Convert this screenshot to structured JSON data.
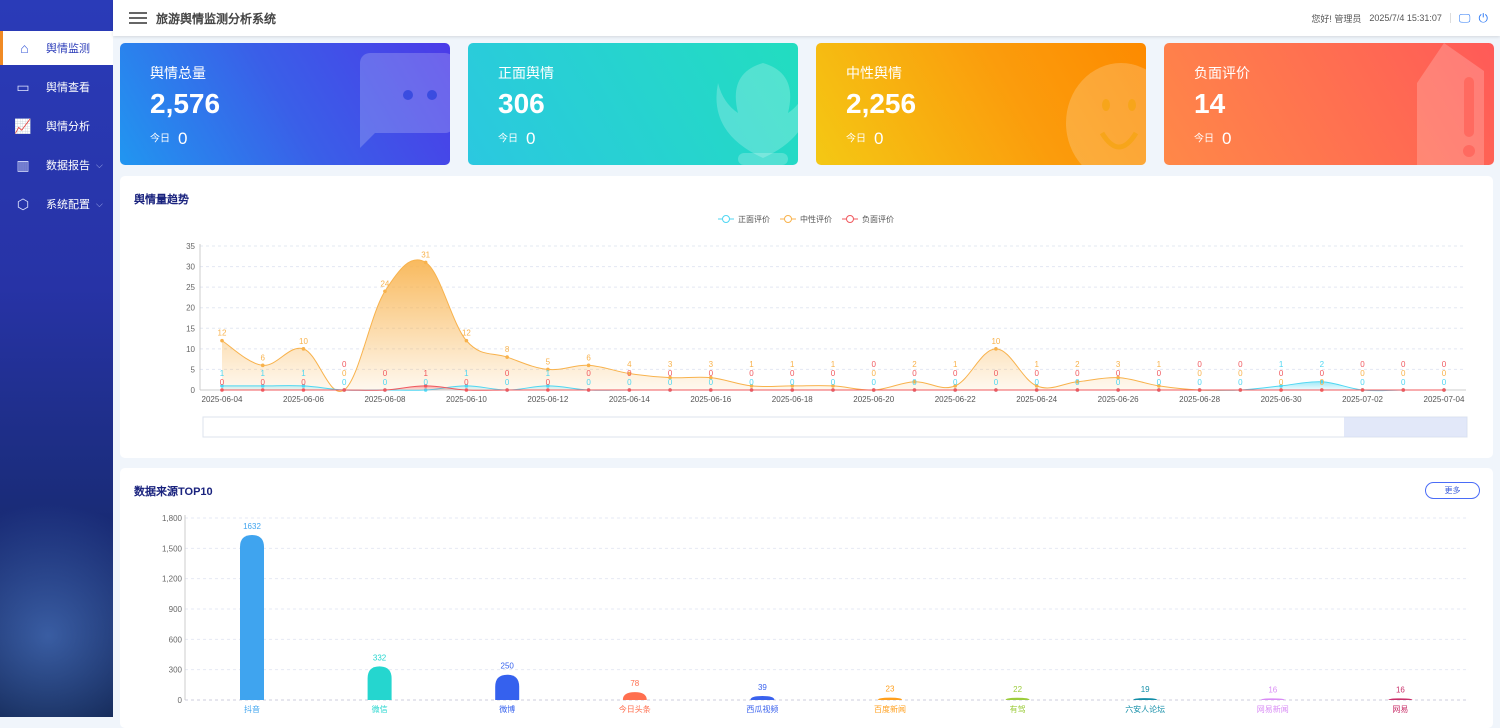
{
  "header": {
    "title": "旅游舆情监测分析系统",
    "greeting": "您好! 管理员",
    "datetime": "2025/7/4 15:31:07"
  },
  "sidebar": {
    "items": [
      {
        "label": "舆情监测",
        "icon": "home-icon",
        "active": true
      },
      {
        "label": "舆情查看",
        "icon": "monitor-list-icon"
      },
      {
        "label": "舆情分析",
        "icon": "line-chart-icon"
      },
      {
        "label": "数据报告",
        "icon": "bar-chart-icon",
        "expandable": true
      },
      {
        "label": "系统配置",
        "icon": "gear-icon",
        "expandable": true
      }
    ]
  },
  "cards": [
    {
      "label": "舆情总量",
      "value": "2,576",
      "today_label": "今日",
      "today": "0",
      "icon": "chat-icon"
    },
    {
      "label": "正面舆情",
      "value": "306",
      "today_label": "今日",
      "today": "0",
      "icon": "tulip-icon"
    },
    {
      "label": "中性舆情",
      "value": "2,256",
      "today_label": "今日",
      "today": "0",
      "icon": "smile-icon"
    },
    {
      "label": "负面评价",
      "value": "14",
      "today_label": "今日",
      "today": "0",
      "icon": "warning-icon"
    }
  ],
  "colors": {
    "positive": "#4fd6f2",
    "neutral": "#f8b24c",
    "negative": "#f0585e"
  },
  "chart_data": [
    {
      "type": "line",
      "title": "舆情量趋势",
      "ylim": [
        0,
        35
      ],
      "yticks": [
        0,
        5,
        10,
        15,
        20,
        25,
        30,
        35
      ],
      "grid": true,
      "legend": "top-center",
      "x": [
        "2025-06-04",
        "2025-06-05",
        "2025-06-06",
        "2025-06-07",
        "2025-06-08",
        "2025-06-09",
        "2025-06-10",
        "2025-06-11",
        "2025-06-12",
        "2025-06-13",
        "2025-06-14",
        "2025-06-15",
        "2025-06-16",
        "2025-06-17",
        "2025-06-18",
        "2025-06-19",
        "2025-06-20",
        "2025-06-21",
        "2025-06-22",
        "2025-06-23",
        "2025-06-24",
        "2025-06-25",
        "2025-06-26",
        "2025-06-27",
        "2025-06-28",
        "2025-06-29",
        "2025-06-30",
        "2025-07-01",
        "2025-07-02",
        "2025-07-03",
        "2025-07-04"
      ],
      "series": [
        {
          "name": "正面评价",
          "values": [
            1,
            1,
            1,
            0,
            0,
            0,
            1,
            0,
            1,
            0,
            0,
            0,
            0,
            0,
            0,
            0,
            0,
            0,
            0,
            0,
            0,
            0,
            0,
            0,
            0,
            0,
            1,
            2,
            0,
            0,
            0
          ]
        },
        {
          "name": "中性评价",
          "values": [
            12,
            6,
            10,
            0,
            24,
            31,
            12,
            8,
            5,
            6,
            4,
            3,
            3,
            1,
            1,
            1,
            0,
            2,
            1,
            10,
            1,
            2,
            3,
            1,
            0,
            0,
            0,
            0,
            0,
            0,
            0
          ]
        },
        {
          "name": "负面评价",
          "values": [
            0,
            0,
            0,
            0,
            0,
            1,
            0,
            0,
            0,
            0,
            0,
            0,
            0,
            0,
            0,
            0,
            0,
            0,
            0,
            0,
            0,
            0,
            0,
            0,
            0,
            0,
            0,
            0,
            0,
            0,
            0
          ]
        }
      ]
    },
    {
      "type": "bar",
      "title": "数据来源TOP10",
      "ylim": [
        0,
        1800
      ],
      "yticks": [
        "0",
        "300",
        "600",
        "900",
        "1,200",
        "1,500",
        "1,800"
      ],
      "grid": true,
      "categories": [
        "抖音",
        "微信",
        "微博",
        "今日头条",
        "西瓜视频",
        "百度新闻",
        "有驾",
        "六安人论坛",
        "网易新闻",
        "网易"
      ],
      "values": [
        1632,
        332,
        250,
        78,
        39,
        23,
        22,
        19,
        16,
        16
      ],
      "colors": [
        "#3fa4ef",
        "#25d6cf",
        "#3561ee",
        "#ff6f4f",
        "#3a62ee",
        "#ff9f1c",
        "#9ccc3c",
        "#138ea8",
        "#d98cf5",
        "#c9306a"
      ]
    }
  ],
  "more_button": "更多"
}
